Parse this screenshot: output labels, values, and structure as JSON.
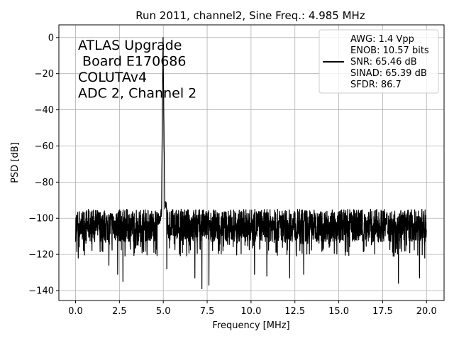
{
  "chart_data": {
    "type": "line",
    "title": "Run 2011, channel2, Sine Freq.: 4.985 MHz",
    "xlabel": "Frequency [MHz]",
    "ylabel": "PSD [dB]",
    "xlim": [
      -0.95,
      21.0
    ],
    "ylim": [
      -145.5,
      7.0
    ],
    "xticks": [
      0.0,
      2.5,
      5.0,
      7.5,
      10.0,
      12.5,
      15.0,
      17.5,
      20.0
    ],
    "xtick_labels": [
      "0.0",
      "2.5",
      "5.0",
      "7.5",
      "10.0",
      "12.5",
      "15.0",
      "17.5",
      "20.0"
    ],
    "yticks": [
      0,
      -20,
      -40,
      -60,
      -80,
      -100,
      -120,
      -140
    ],
    "ytick_labels": [
      "0",
      "−20",
      "−40",
      "−60",
      "−80",
      "−100",
      "−120",
      "−140"
    ],
    "grid": true,
    "annotation": [
      "ATLAS Upgrade",
      " Board E170686",
      "COLUTAv4",
      "ADC 2, Channel 2"
    ],
    "legend": {
      "placement": "top-right",
      "lines": [
        "AWG: 1.4 Vpp",
        "ENOB: 10.57 bits",
        "SNR: 65.46 dB",
        "SINAD: 65.39 dB",
        "SFDR: 86.7"
      ]
    },
    "series": [
      {
        "color": "#000000",
        "peak": {
          "x": 4.985,
          "y": 0
        },
        "noise_floor_mean_db": -104,
        "noise_floor_range_db": [
          -113,
          -95
        ],
        "x": [
          0.0,
          0.3,
          0.6,
          1.0,
          1.4,
          1.8,
          2.2,
          2.6,
          3.0,
          3.5,
          4.0,
          4.5,
          4.8,
          4.9,
          4.985,
          5.08,
          5.2,
          5.5,
          6.0,
          6.5,
          7.0,
          7.5,
          8.0,
          8.5,
          9.0,
          9.5,
          10.0,
          10.5,
          11.0,
          11.5,
          12.0,
          12.5,
          13.0,
          13.5,
          14.0,
          14.5,
          15.0,
          15.5,
          16.0,
          16.5,
          17.0,
          17.5,
          18.0,
          18.5,
          19.0,
          19.5,
          20.0
        ],
        "y": [
          -103,
          -104,
          -105,
          -103,
          -104,
          -105,
          -104,
          -103,
          -104,
          -104,
          -104,
          -103,
          -100,
          -96,
          0,
          -92,
          -95,
          -101,
          -104,
          -104,
          -105,
          -104,
          -103,
          -104,
          -104,
          -105,
          -104,
          -104,
          -103,
          -104,
          -104,
          -104,
          -105,
          -104,
          -103,
          -104,
          -104,
          -105,
          -104,
          -104,
          -103,
          -104,
          -104,
          -105,
          -104,
          -104,
          -104
        ]
      }
    ],
    "notable_dips": [
      {
        "x": 0.15,
        "y": -122
      },
      {
        "x": 1.9,
        "y": -126
      },
      {
        "x": 2.4,
        "y": -131
      },
      {
        "x": 2.7,
        "y": -135
      },
      {
        "x": 5.2,
        "y": -128
      },
      {
        "x": 6.8,
        "y": -133
      },
      {
        "x": 7.2,
        "y": -139
      },
      {
        "x": 7.6,
        "y": -137
      },
      {
        "x": 10.2,
        "y": -131
      },
      {
        "x": 10.9,
        "y": -132
      },
      {
        "x": 12.2,
        "y": -133
      },
      {
        "x": 13.0,
        "y": -131
      },
      {
        "x": 18.4,
        "y": -136
      },
      {
        "x": 19.6,
        "y": -133
      },
      {
        "x": 19.9,
        "y": -122
      }
    ]
  }
}
